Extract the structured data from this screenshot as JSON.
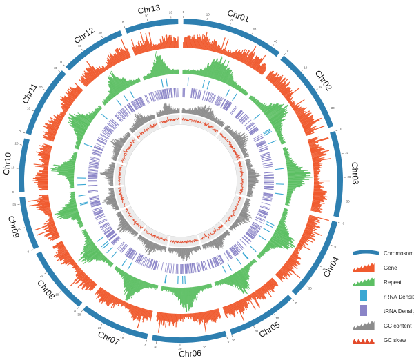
{
  "chromosomes": [
    {
      "name": "Chr01",
      "size": 44
    },
    {
      "name": "Chr02",
      "size": 37
    },
    {
      "name": "Chr03",
      "size": 37
    },
    {
      "name": "Chr04",
      "size": 36
    },
    {
      "name": "Chr05",
      "size": 30
    },
    {
      "name": "Chr06",
      "size": 32
    },
    {
      "name": "Chr07",
      "size": 30
    },
    {
      "name": "Chr08",
      "size": 29
    },
    {
      "name": "Chr09",
      "size": 23
    },
    {
      "name": "Chr10",
      "size": 23
    },
    {
      "name": "Chr11",
      "size": 31
    },
    {
      "name": "Chr12",
      "size": 28
    },
    {
      "name": "Chr13",
      "size": 23
    }
  ],
  "tick_labels": [
    "0",
    "10",
    "20",
    "30",
    "40"
  ],
  "tracks": [
    {
      "key": "chromosome",
      "label": "Chromosome",
      "color": "#2e7fb0"
    },
    {
      "key": "gene",
      "label": "Gene",
      "color": "#f05a2e"
    },
    {
      "key": "repeat",
      "label": "Repeat",
      "color": "#5cbf63"
    },
    {
      "key": "rrna",
      "label": "rRNA Density",
      "color": "#3aa7d3"
    },
    {
      "key": "trna",
      "label": "tRNA Density",
      "color": "#8a84c7"
    },
    {
      "key": "gc",
      "label": "GC content",
      "color": "#8c8c8c"
    },
    {
      "key": "gcskew",
      "label": "GC skew",
      "color": "#e34a2b"
    }
  ]
}
